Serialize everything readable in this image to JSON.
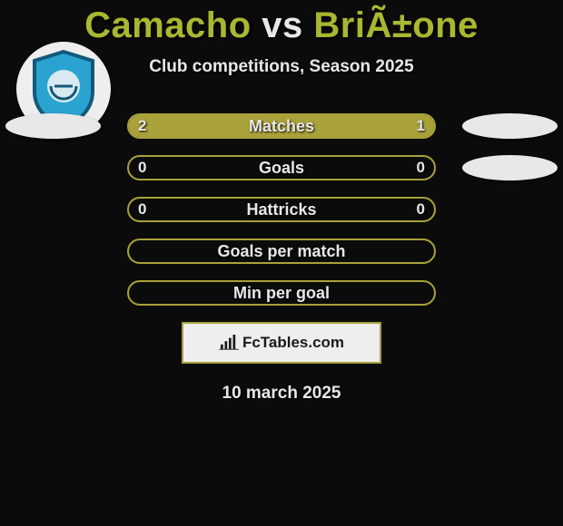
{
  "title": {
    "left": "Camacho",
    "vs": "vs",
    "right": "BriÃ±one",
    "left_color": "#aab730",
    "vs_color": "#e8e8e8",
    "right_color": "#aab730"
  },
  "subtitle": {
    "text": "Club competitions, Season 2025",
    "color": "#e8e8e8"
  },
  "stats": {
    "bar_border_color": "#a9a13a",
    "bar_left_fill": "#a9a13a",
    "bar_right_fill": "#a9a13a",
    "label_color": "#e8e8e8",
    "value_color": "#e8e8e8",
    "rows": [
      {
        "label": "Matches",
        "left_value": "2",
        "right_value": "1",
        "left_pct": 66.6,
        "right_pct": 33.4
      },
      {
        "label": "Goals",
        "left_value": "0",
        "right_value": "0",
        "left_pct": 0,
        "right_pct": 0
      },
      {
        "label": "Hattricks",
        "left_value": "0",
        "right_value": "0",
        "left_pct": 0,
        "right_pct": 0
      },
      {
        "label": "Goals per match",
        "left_value": "",
        "right_value": "",
        "left_pct": 0,
        "right_pct": 0
      },
      {
        "label": "Min per goal",
        "left_value": "",
        "right_value": "",
        "left_pct": 0,
        "right_pct": 0
      }
    ]
  },
  "ovals": {
    "tl_color": "#e8e8e8",
    "tr_color": "#e8e8e8",
    "br_color": "#e8e8e8"
  },
  "crest": {
    "bg": "#eeeeee",
    "shield_fill": "#2aa3d1",
    "shield_stroke": "#12597a",
    "inner_fill": "#d9e9f2"
  },
  "footer": {
    "text": "FcTables.com",
    "border_color": "#a9a13a",
    "bg_color": "#eeeeee",
    "text_color": "#1a1a1a",
    "icon_color": "#1a1a1a"
  },
  "date": {
    "text": "10 march 2025",
    "color": "#e8e8e8"
  }
}
